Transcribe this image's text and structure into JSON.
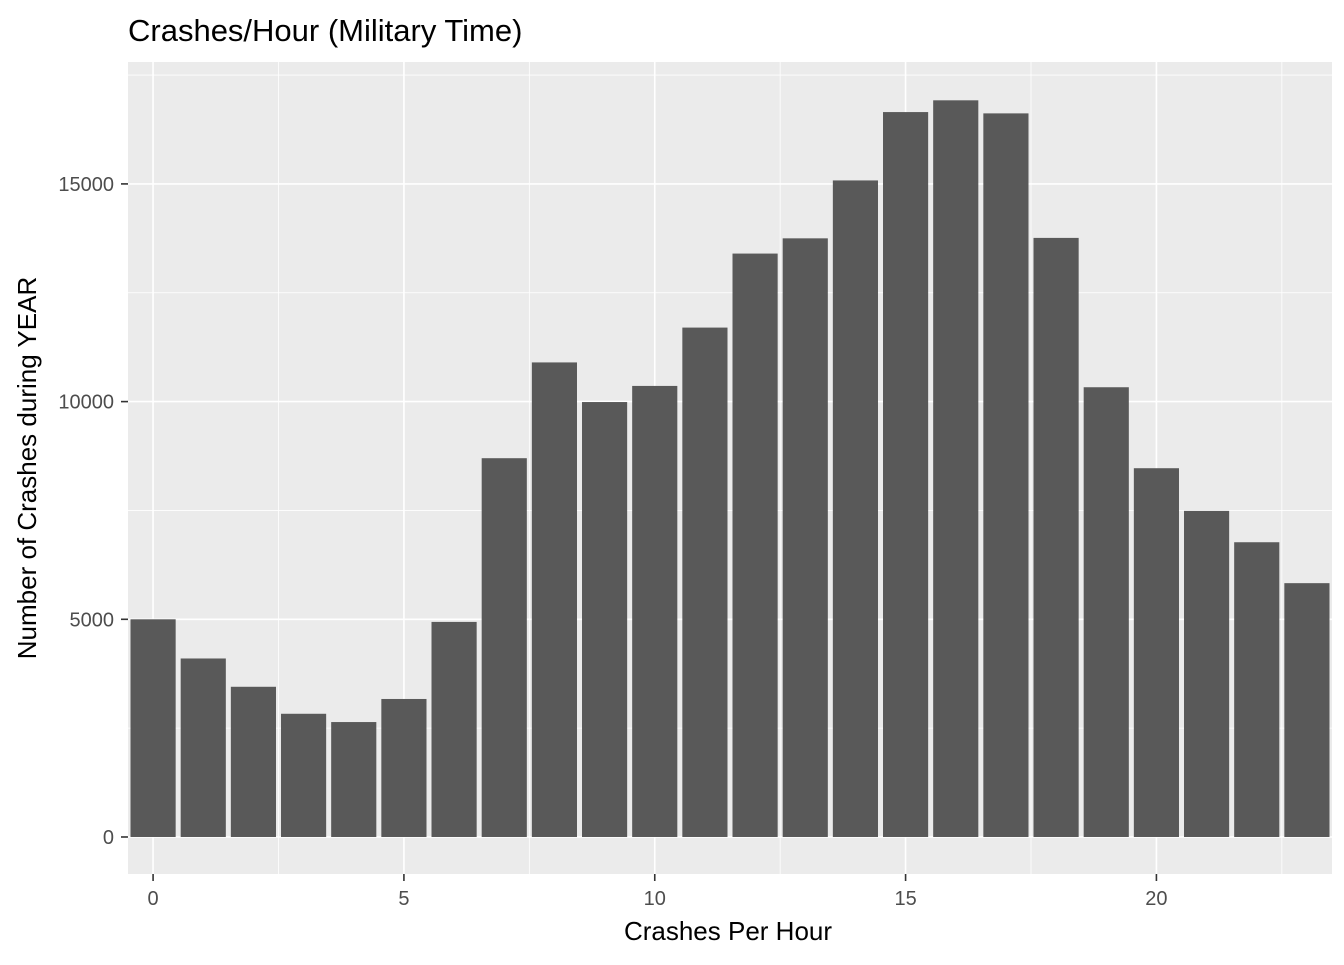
{
  "chart_data": {
    "type": "bar",
    "title": "Crashes/Hour (Military Time)",
    "xlabel": "Crashes Per Hour",
    "ylabel": "Number of Crashes during YEAR",
    "categories": [
      0,
      1,
      2,
      3,
      4,
      5,
      6,
      7,
      8,
      9,
      10,
      11,
      12,
      13,
      14,
      15,
      16,
      17,
      18,
      19,
      20,
      21,
      22,
      23
    ],
    "values": [
      5000,
      4100,
      3450,
      2830,
      2640,
      3170,
      4940,
      8700,
      10900,
      9990,
      10360,
      11700,
      13400,
      13750,
      15080,
      16650,
      16920,
      16620,
      13760,
      10330,
      8470,
      7490,
      6770,
      5830
    ],
    "xlim": [
      -0.5,
      23.5
    ],
    "ylim": [
      -850,
      17800
    ],
    "x_ticks": [
      0,
      5,
      10,
      15,
      20
    ],
    "y_ticks": [
      0,
      5000,
      10000,
      15000
    ],
    "x_tick_labels": [
      "0",
      "5",
      "10",
      "15",
      "20"
    ],
    "y_tick_labels": [
      "0",
      "5000",
      "10000",
      "15000"
    ],
    "grid": true,
    "colors": {
      "panel": "#EBEBEB",
      "grid": "#FFFFFF",
      "bar": "#595959",
      "tick_label": "#4D4D4D",
      "text": "#000000"
    }
  }
}
